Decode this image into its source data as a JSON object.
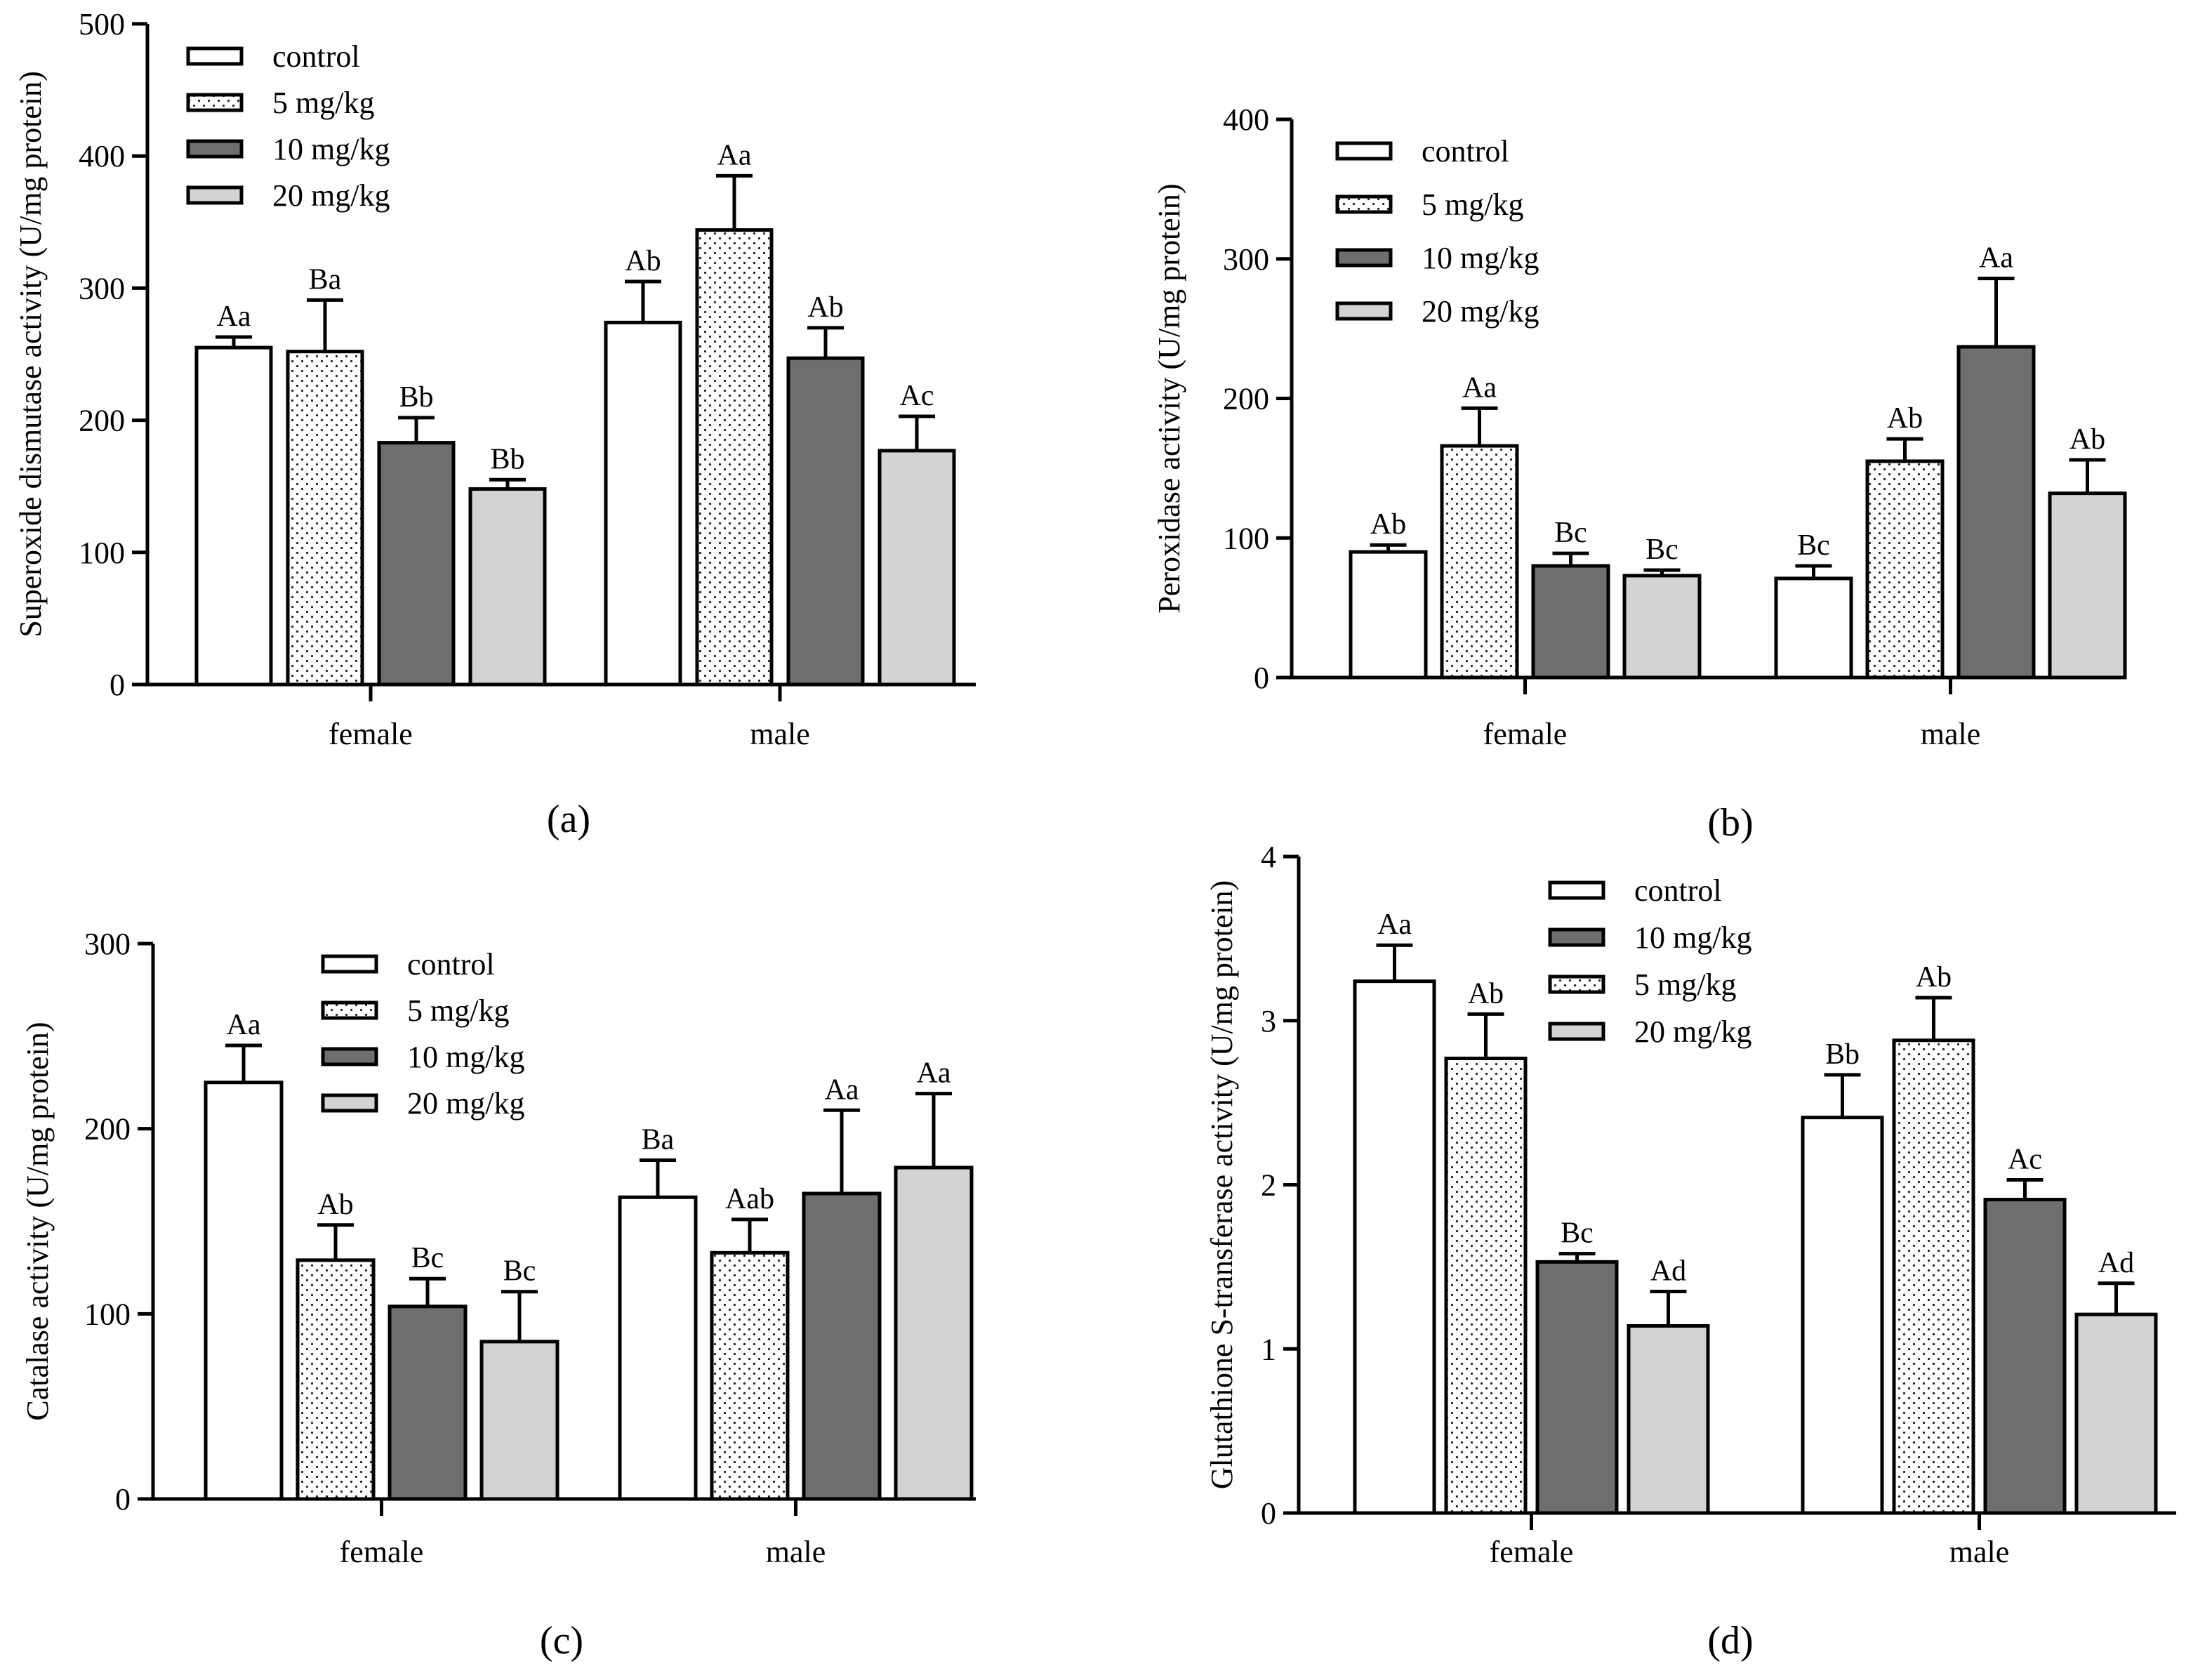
{
  "chart_data": [
    {
      "id": "a",
      "type": "bar",
      "panel_label": "(a)",
      "ylabel": "Superoxide dismutase activity (U/mg protein)",
      "ylim": [
        0,
        500
      ],
      "yticks": [
        0,
        100,
        200,
        300,
        400,
        500
      ],
      "categories": [
        "female",
        "male"
      ],
      "legend_placement": "top-left",
      "series": [
        {
          "name": "control",
          "fill": "white",
          "values": [
            255,
            274
          ],
          "errors": [
            8,
            31
          ],
          "letters": [
            "Aa",
            "Ab"
          ]
        },
        {
          "name": "5 mg/kg",
          "fill": "dots",
          "values": [
            252,
            344
          ],
          "errors": [
            39,
            41
          ],
          "letters": [
            "Ba",
            "Aa"
          ]
        },
        {
          "name": "10 mg/kg",
          "fill": "dark",
          "values": [
            183,
            247
          ],
          "errors": [
            19,
            23
          ],
          "letters": [
            "Bb",
            "Ab"
          ]
        },
        {
          "name": "20 mg/kg",
          "fill": "light",
          "values": [
            148,
            177
          ],
          "errors": [
            7,
            26
          ],
          "letters": [
            "Bb",
            "Ac"
          ]
        }
      ]
    },
    {
      "id": "b",
      "type": "bar",
      "panel_label": "(b)",
      "ylabel": "Peroxidase activity (U/mg protein)",
      "ylim": [
        0,
        400
      ],
      "yticks": [
        0,
        100,
        200,
        300,
        400
      ],
      "categories": [
        "female",
        "male"
      ],
      "legend_placement": "top-left",
      "series": [
        {
          "name": "control",
          "fill": "white",
          "values": [
            90,
            71
          ],
          "errors": [
            5,
            9
          ],
          "letters": [
            "Ab",
            "Bc"
          ]
        },
        {
          "name": "5 mg/kg",
          "fill": "dots",
          "values": [
            166,
            155
          ],
          "errors": [
            27,
            16
          ],
          "letters": [
            "Aa",
            "Ab"
          ]
        },
        {
          "name": "10 mg/kg",
          "fill": "dark",
          "values": [
            80,
            237
          ],
          "errors": [
            9,
            49
          ],
          "letters": [
            "Bc",
            "Aa"
          ]
        },
        {
          "name": "20 mg/kg",
          "fill": "light",
          "values": [
            73,
            132
          ],
          "errors": [
            4,
            24
          ],
          "letters": [
            "Bc",
            "Ab"
          ]
        }
      ]
    },
    {
      "id": "c",
      "type": "bar",
      "panel_label": "(c)",
      "ylabel": "Catalase activity (U/mg protein)",
      "ylim": [
        0,
        300
      ],
      "yticks": [
        0,
        100,
        200,
        300
      ],
      "categories": [
        "female",
        "male"
      ],
      "legend_placement": "top-center",
      "series": [
        {
          "name": "control",
          "fill": "white",
          "values": [
            225,
            163
          ],
          "errors": [
            20,
            20
          ],
          "letters": [
            "Aa",
            "Ba"
          ]
        },
        {
          "name": "5 mg/kg",
          "fill": "dots",
          "values": [
            129,
            133
          ],
          "errors": [
            19,
            18
          ],
          "letters": [
            "Ab",
            "Aab"
          ]
        },
        {
          "name": "10 mg/kg",
          "fill": "dark",
          "values": [
            104,
            165
          ],
          "errors": [
            15,
            45
          ],
          "letters": [
            "Bc",
            "Aa"
          ]
        },
        {
          "name": "20 mg/kg",
          "fill": "light",
          "values": [
            85,
            179
          ],
          "errors": [
            27,
            40
          ],
          "letters": [
            "Bc",
            "Aa"
          ]
        }
      ]
    },
    {
      "id": "d",
      "type": "bar",
      "panel_label": "(d)",
      "ylabel": "Glutathione S-transferase activity (U/mg protein)",
      "ylim": [
        0,
        4
      ],
      "yticks": [
        0,
        1,
        2,
        3,
        4
      ],
      "categories": [
        "female",
        "male"
      ],
      "legend_placement": "top-center",
      "legend_order": [
        "control",
        "10 mg/kg",
        "5 mg/kg",
        "20 mg/kg"
      ],
      "series": [
        {
          "name": "control",
          "fill": "white",
          "values": [
            3.24,
            2.41
          ],
          "errors": [
            0.22,
            0.26
          ],
          "letters": [
            "Aa",
            "Bb"
          ]
        },
        {
          "name": "5 mg/kg",
          "fill": "dots",
          "values": [
            2.77,
            2.88
          ],
          "errors": [
            0.27,
            0.26
          ],
          "letters": [
            "Ab",
            "Ab"
          ]
        },
        {
          "name": "10 mg/kg",
          "fill": "dark",
          "values": [
            1.53,
            1.91
          ],
          "errors": [
            0.05,
            0.12
          ],
          "letters": [
            "Bc",
            "Ac"
          ]
        },
        {
          "name": "20 mg/kg",
          "fill": "light",
          "values": [
            1.14,
            1.21
          ],
          "errors": [
            0.21,
            0.19
          ],
          "letters": [
            "Ad",
            "Ad"
          ]
        }
      ]
    }
  ]
}
